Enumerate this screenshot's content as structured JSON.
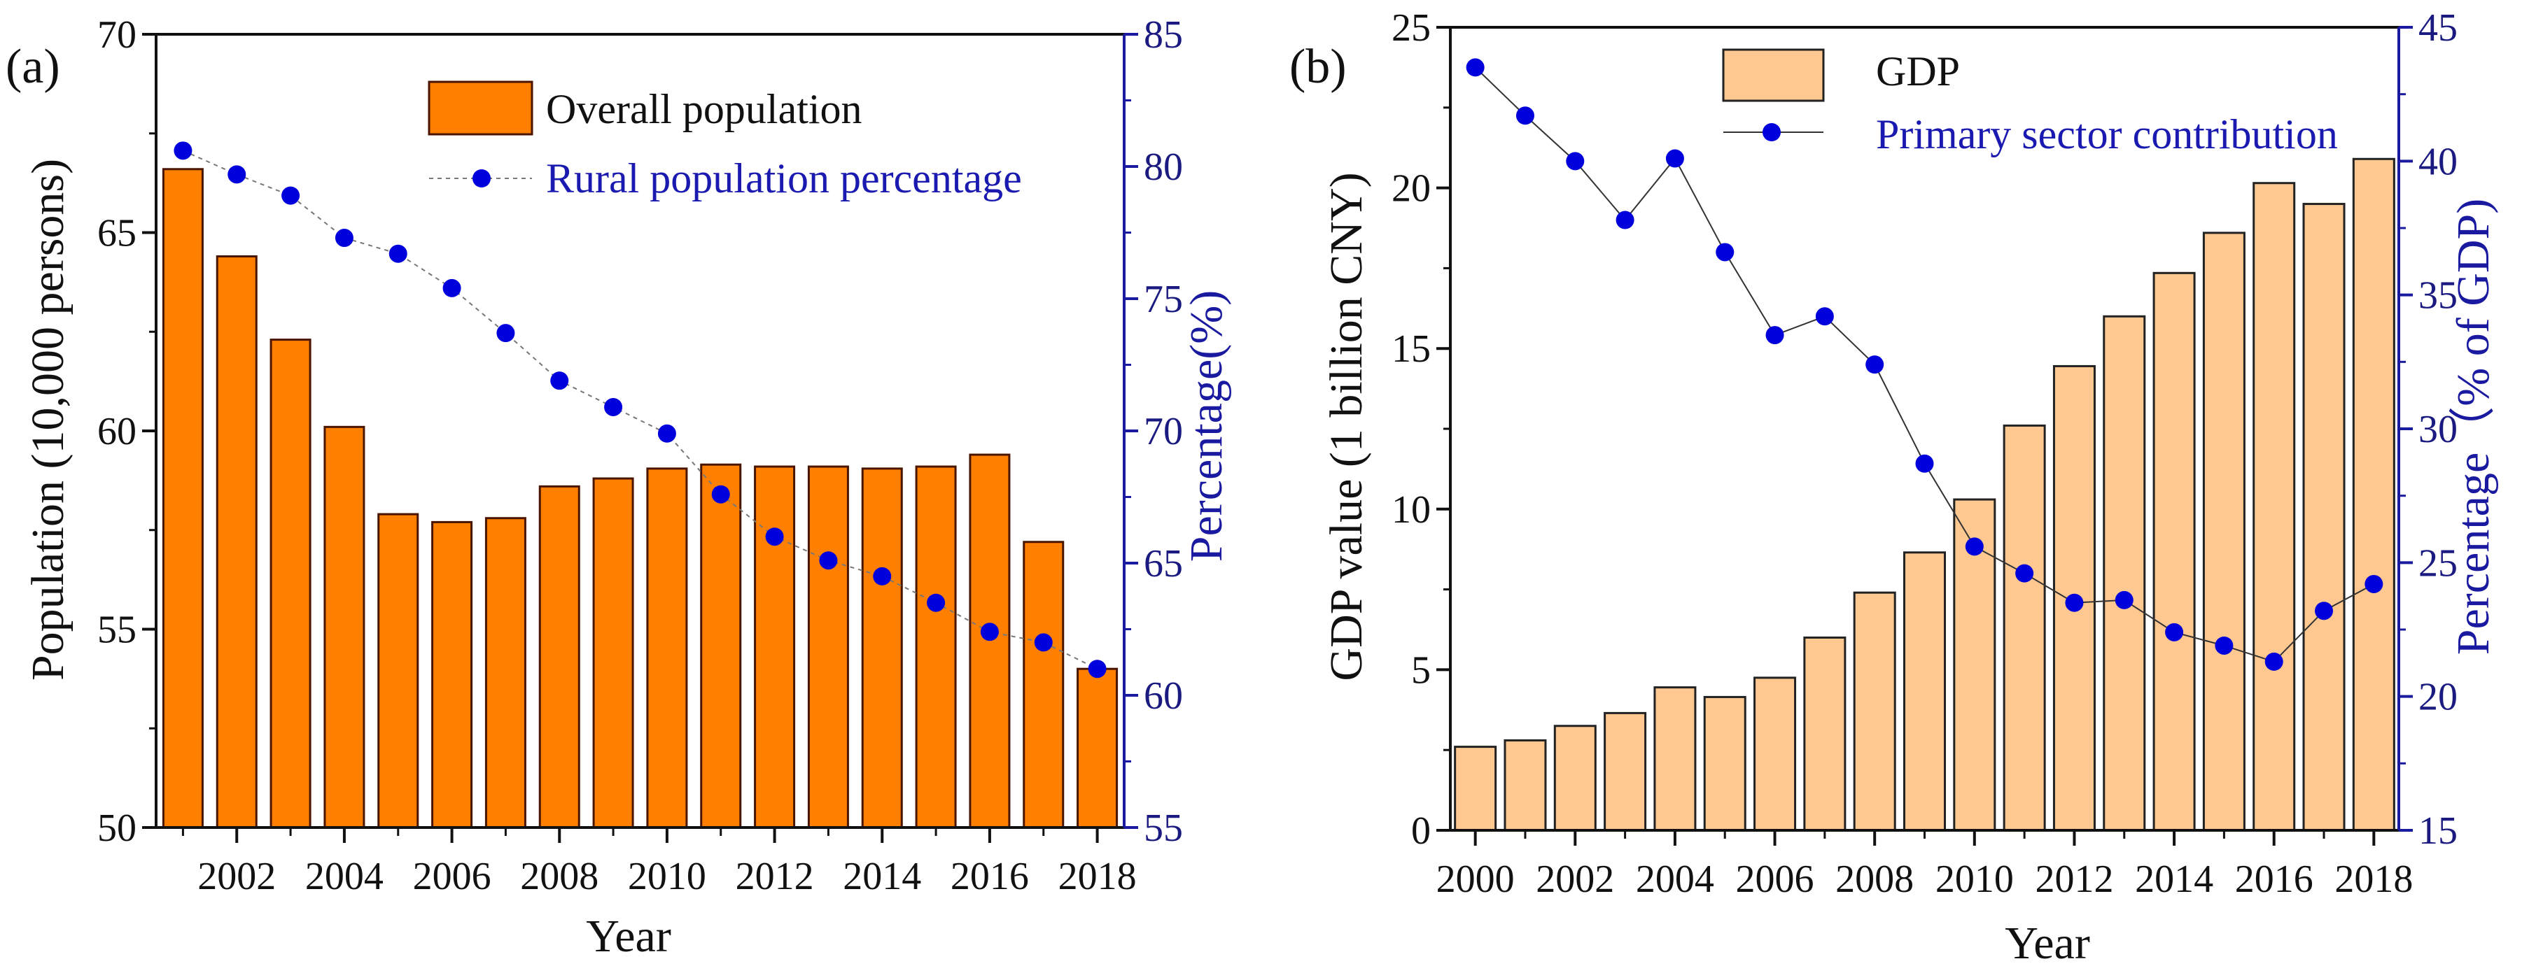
{
  "chart_data": [
    {
      "type": "bar+line",
      "panel_label": "(a)",
      "xlabel": "Year",
      "ylabel": "Population (10,000 persons)",
      "ylabel_right": "Percentage(%)",
      "x": [
        2001,
        2002,
        2003,
        2004,
        2005,
        2006,
        2007,
        2008,
        2009,
        2010,
        2011,
        2012,
        2013,
        2014,
        2015,
        2016,
        2017,
        2018
      ],
      "xlim": [
        2000.5,
        2018.5
      ],
      "x_ticks": [
        "2002",
        "2004",
        "2006",
        "2008",
        "2010",
        "2012",
        "2014",
        "2016",
        "2018"
      ],
      "ylim": [
        50,
        70
      ],
      "y_ticks": [
        "50",
        "55",
        "60",
        "65",
        "70"
      ],
      "ylim_right": [
        55,
        85
      ],
      "y_ticks_right": [
        "55",
        "60",
        "65",
        "70",
        "75",
        "80",
        "85"
      ],
      "series": [
        {
          "name": "Overall population",
          "kind": "bar",
          "axis": "left",
          "color": "#ff8000",
          "values": [
            66.6,
            64.4,
            62.3,
            60.1,
            57.9,
            57.7,
            57.8,
            58.6,
            58.8,
            59.05,
            59.15,
            59.1,
            59.1,
            59.05,
            59.1,
            59.4,
            57.2,
            54.0
          ]
        },
        {
          "name": "Rural population percentage",
          "kind": "line",
          "axis": "right",
          "color": "#0000dd",
          "values": [
            80.6,
            79.7,
            78.9,
            77.3,
            76.7,
            75.4,
            73.7,
            71.9,
            70.9,
            69.9,
            67.6,
            66.0,
            65.1,
            64.5,
            63.5,
            62.4,
            62.0,
            61.0
          ]
        }
      ],
      "legend_position": "top-center"
    },
    {
      "type": "bar+line",
      "panel_label": "(b)",
      "xlabel": "Year",
      "ylabel": "GDP value (1 billion CNY)",
      "ylabel_right": "Percentage（% of GDP)",
      "x": [
        2000,
        2001,
        2002,
        2003,
        2004,
        2005,
        2006,
        2007,
        2008,
        2009,
        2010,
        2011,
        2012,
        2013,
        2014,
        2015,
        2016,
        2017,
        2018
      ],
      "xlim": [
        1999.5,
        2018.5
      ],
      "x_ticks": [
        "2000",
        "2002",
        "2004",
        "2006",
        "2008",
        "2010",
        "2012",
        "2014",
        "2016",
        "2018"
      ],
      "ylim": [
        0,
        25
      ],
      "y_ticks": [
        "0",
        "5",
        "10",
        "15",
        "20",
        "25"
      ],
      "ylim_right": [
        15,
        45
      ],
      "y_ticks_right": [
        "15",
        "20",
        "25",
        "30",
        "35",
        "40",
        "45"
      ],
      "series": [
        {
          "name": "GDP",
          "kind": "bar",
          "axis": "left",
          "color": "#ffc890",
          "values": [
            2.6,
            2.8,
            3.25,
            3.65,
            4.45,
            4.15,
            4.75,
            6.0,
            7.4,
            8.65,
            10.3,
            12.6,
            14.45,
            16.0,
            17.35,
            18.6,
            20.15,
            19.5,
            20.9
          ]
        },
        {
          "name": "Primary sector contribution",
          "kind": "line",
          "axis": "right",
          "color": "#0000dd",
          "values": [
            43.5,
            41.7,
            40.0,
            37.8,
            40.1,
            36.6,
            33.5,
            34.2,
            32.4,
            28.7,
            25.6,
            24.6,
            23.5,
            23.6,
            22.4,
            21.9,
            21.3,
            23.2,
            24.2
          ]
        }
      ],
      "legend_position": "top-center"
    }
  ]
}
